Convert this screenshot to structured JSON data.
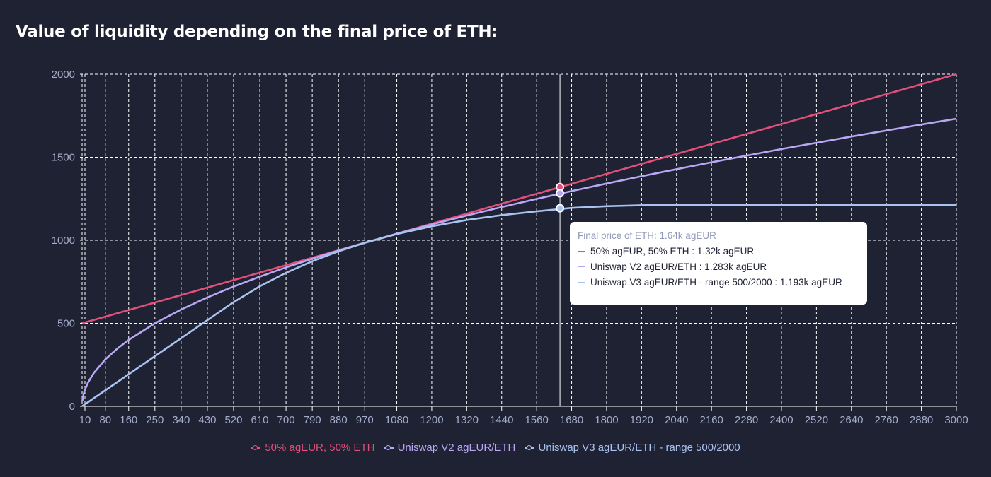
{
  "title": "Value of liquidity depending on the final price of ETH:",
  "chart_data": {
    "type": "line",
    "title": "Value of liquidity depending on the final price of ETH:",
    "xlabel": "",
    "ylabel": "",
    "xlim": [
      10,
      3000
    ],
    "ylim": [
      0,
      2000
    ],
    "x_ticks": [
      10,
      80,
      160,
      250,
      340,
      430,
      520,
      610,
      700,
      790,
      880,
      970,
      1080,
      1200,
      1320,
      1440,
      1560,
      1680,
      1800,
      1920,
      2040,
      2160,
      2280,
      2400,
      2520,
      2640,
      2760,
      2880,
      3000
    ],
    "y_ticks": [
      0,
      500,
      1000,
      1500,
      2000
    ],
    "grid": true,
    "legend_position": "bottom",
    "x": [
      1,
      5,
      10,
      20,
      40,
      80,
      120,
      160,
      250,
      340,
      430,
      500,
      520,
      610,
      700,
      790,
      880,
      970,
      1080,
      1200,
      1320,
      1440,
      1560,
      1680,
      1800,
      1920,
      2000,
      2160,
      2400,
      2640,
      2880,
      3000
    ],
    "series": [
      {
        "name": "50% agEUR, 50% ETH",
        "color": "#e0507a",
        "values": [
          500.5,
          502.5,
          505,
          510,
          520,
          540,
          560,
          580,
          625,
          670,
          715,
          750,
          760,
          805,
          850,
          895,
          940,
          985,
          1040,
          1100,
          1160,
          1220,
          1280,
          1340,
          1400,
          1460,
          1500,
          1580,
          1700,
          1820,
          1940,
          2000
        ]
      },
      {
        "name": "Uniswap V2 agEUR/ETH",
        "color": "#b9a6f5",
        "values": [
          31.6,
          70.7,
          100,
          141.4,
          200,
          282.8,
          346.4,
          400,
          500,
          583.1,
          655.7,
          707.1,
          721.1,
          781,
          836.7,
          888.8,
          938.1,
          984.9,
          1039.2,
          1095.4,
          1148.9,
          1200,
          1249,
          1296.2,
          1341.6,
          1385.6,
          1414.2,
          1469.7,
          1549.2,
          1624.8,
          1697.1,
          1732.1
        ]
      },
      {
        "name": "Uniswap V3 agEUR/ETH - range 500/2000",
        "color": "#a9c3f0",
        "values": [
          1.2,
          6,
          12.1,
          24.1,
          48.3,
          96.5,
          144.8,
          193.1,
          301.7,
          410.3,
          518.9,
          603.4,
          627.2,
          723.1,
          804.4,
          873.8,
          933.4,
          984.5,
          1037.3,
          1084.4,
          1122.1,
          1151.6,
          1174.1,
          1195,
          1205,
          1211,
          1214,
          1214,
          1214,
          1214,
          1214,
          1214
        ]
      }
    ],
    "hover": {
      "x": 1640,
      "values": [
        1320,
        1283,
        1193
      ],
      "header": "Final price of ETH: 1.64k agEUR",
      "rows": [
        "50% agEUR, 50% ETH : 1.32k agEUR",
        "Uniswap V2 agEUR/ETH : 1.283k agEUR",
        "Uniswap V3 agEUR/ETH - range 500/2000 : 1.193k agEUR"
      ]
    }
  }
}
